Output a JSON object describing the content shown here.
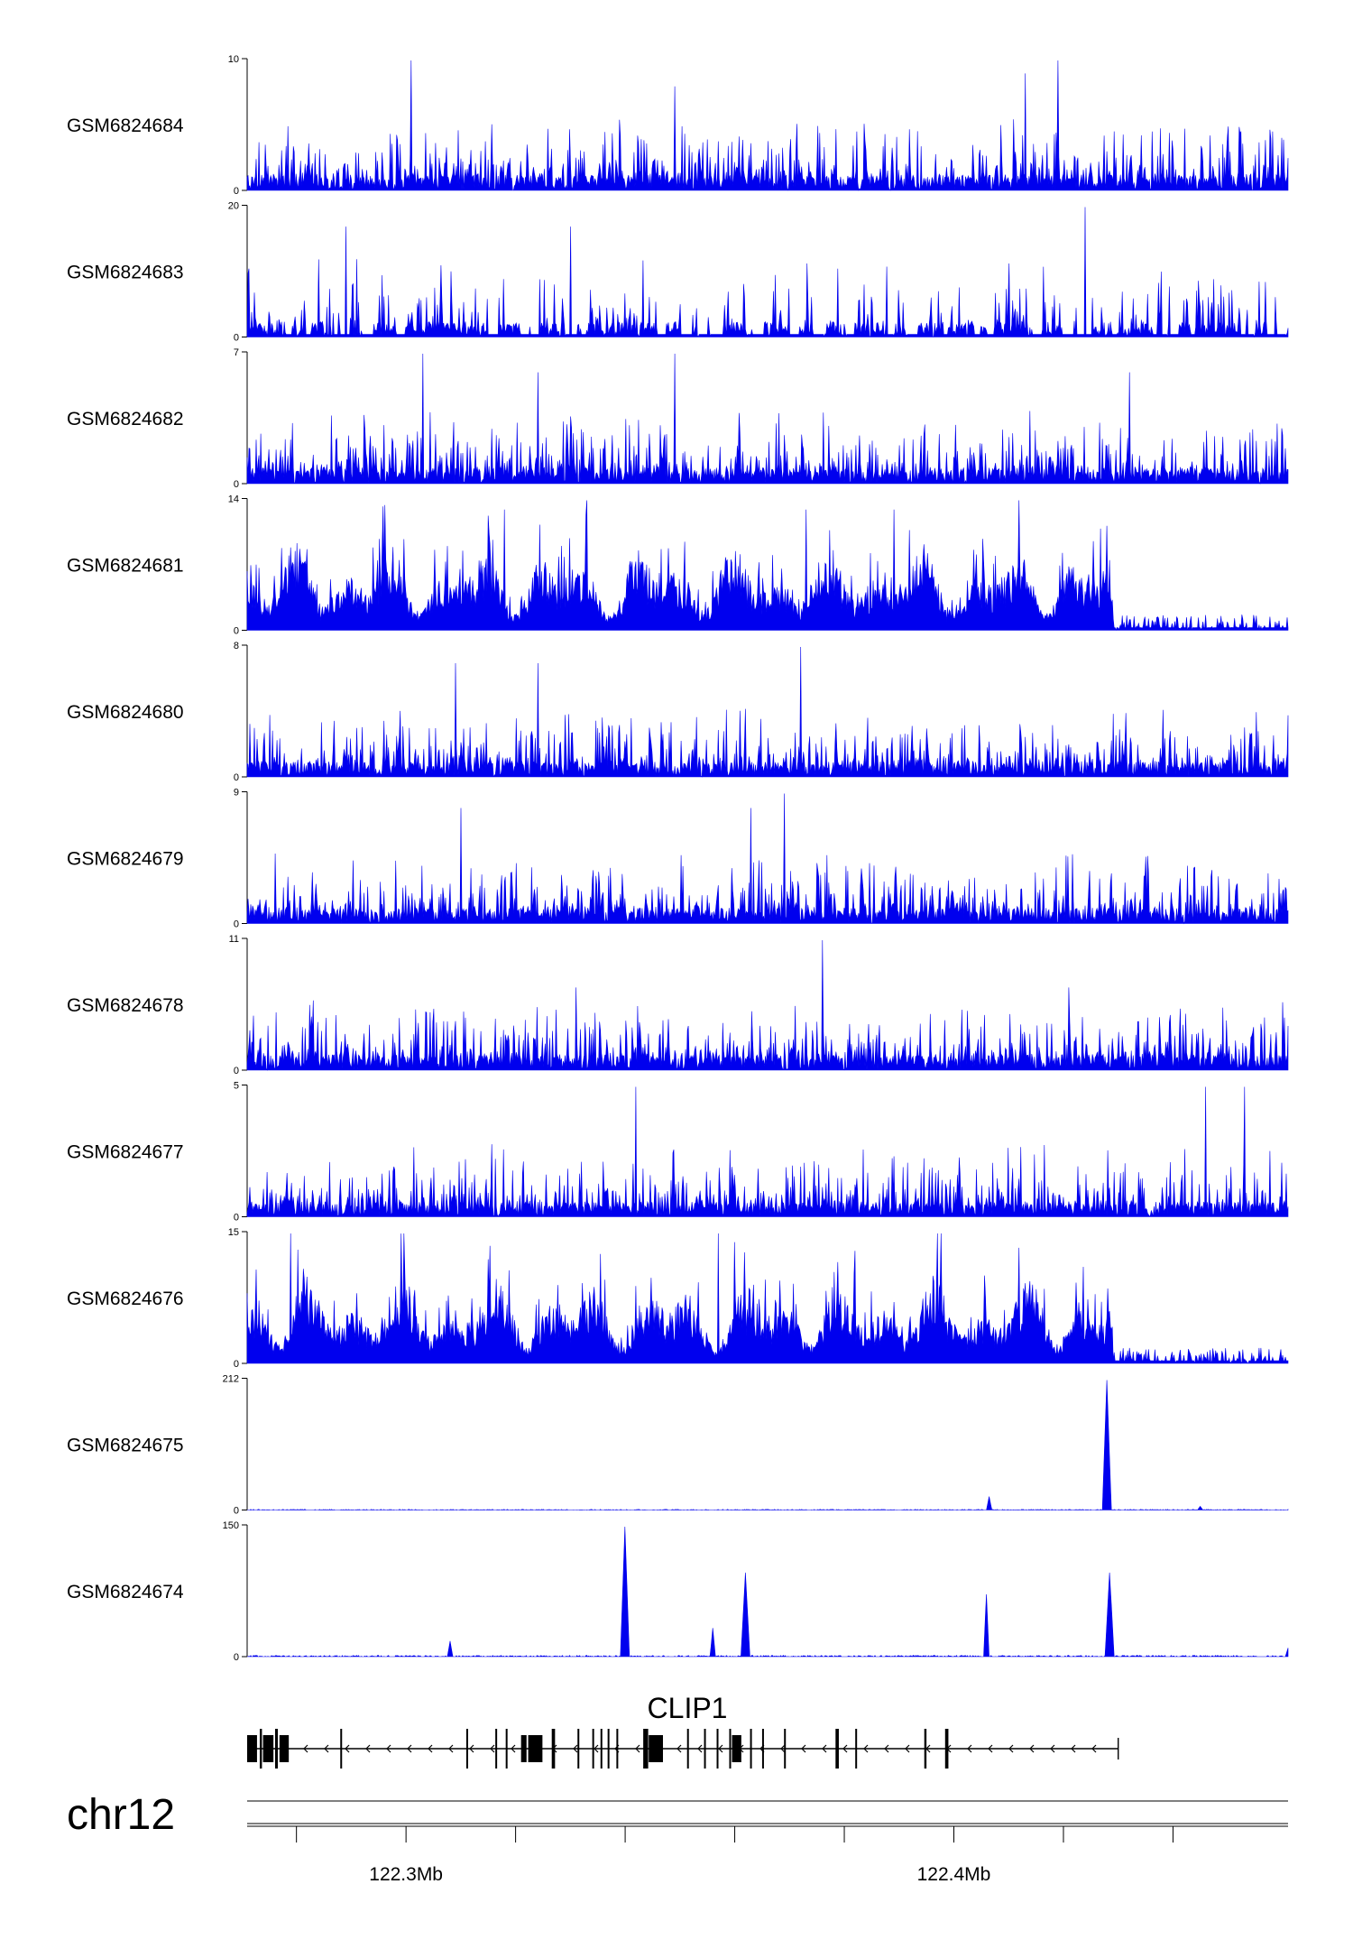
{
  "chart_data": {
    "type": "area",
    "title": "",
    "chromosome": "chr12",
    "genomic_range": [
      122265000,
      122455000
    ],
    "tracks": [
      {
        "name": "GSM6824684",
        "ymax": 10,
        "ymin": 0,
        "profile": "noisy",
        "level": 0.35,
        "peaks": [
          [
            122295000,
            10
          ],
          [
            122413000,
            10
          ],
          [
            122407000,
            9
          ],
          [
            122343000,
            8
          ]
        ]
      },
      {
        "name": "GSM6824683",
        "ymax": 20,
        "ymin": 0,
        "profile": "spiky-gapped",
        "level": 0.15,
        "peaks": [
          [
            122418000,
            20
          ],
          [
            122283000,
            17
          ],
          [
            122324000,
            17
          ]
        ]
      },
      {
        "name": "GSM6824682",
        "ymax": 7,
        "ymin": 0,
        "profile": "noisy",
        "level": 0.35,
        "peaks": [
          [
            122297000,
            7
          ],
          [
            122343000,
            7
          ],
          [
            122318000,
            6
          ],
          [
            122426000,
            6
          ]
        ]
      },
      {
        "name": "GSM6824681",
        "ymax": 14,
        "ymin": 0,
        "profile": "dense-drop",
        "level": 0.5,
        "drop_at": 122423000,
        "peaks": [
          [
            122327000,
            14
          ],
          [
            122312000,
            13
          ],
          [
            122367000,
            13
          ],
          [
            122383000,
            13
          ]
        ]
      },
      {
        "name": "GSM6824680",
        "ymax": 8,
        "ymin": 0,
        "profile": "noisy",
        "level": 0.35,
        "peaks": [
          [
            122366000,
            8
          ],
          [
            122303000,
            7
          ],
          [
            122318000,
            7
          ]
        ]
      },
      {
        "name": "GSM6824679",
        "ymax": 9,
        "ymin": 0,
        "profile": "noisy",
        "level": 0.3,
        "peaks": [
          [
            122363000,
            9
          ],
          [
            122357000,
            8
          ],
          [
            122304000,
            8
          ]
        ]
      },
      {
        "name": "GSM6824678",
        "ymax": 11,
        "ymin": 0,
        "profile": "noisy",
        "level": 0.25,
        "peaks": [
          [
            122370000,
            11
          ],
          [
            122325000,
            7
          ],
          [
            122415000,
            7
          ]
        ]
      },
      {
        "name": "GSM6824677",
        "ymax": 5,
        "ymin": 0,
        "profile": "noisy",
        "level": 0.45,
        "peaks": [
          [
            122336000,
            5
          ],
          [
            122440000,
            5
          ],
          [
            122447000,
            5
          ]
        ]
      },
      {
        "name": "GSM6824676",
        "ymax": 15,
        "ymin": 0,
        "profile": "dense-drop",
        "level": 0.5,
        "drop_at": 122423000,
        "peaks": [
          [
            122273000,
            15
          ],
          [
            122351000,
            15
          ],
          [
            122354000,
            14
          ],
          [
            122376000,
            13
          ]
        ]
      },
      {
        "name": "GSM6824675",
        "ymax": 212,
        "ymin": 0,
        "profile": "flat-peaks",
        "level": 0.005,
        "peaks": [
          [
            122422000,
            212
          ],
          [
            122400500,
            22
          ],
          [
            122439000,
            6
          ]
        ]
      },
      {
        "name": "GSM6824674",
        "ymax": 150,
        "ymin": 0,
        "profile": "flat-peaks",
        "level": 0.01,
        "peaks": [
          [
            122334000,
            150
          ],
          [
            122356000,
            97
          ],
          [
            122350000,
            33
          ],
          [
            122302000,
            18
          ],
          [
            122400000,
            72
          ],
          [
            122422500,
            97
          ],
          [
            122455000,
            10
          ]
        ]
      }
    ],
    "gene": {
      "name": "CLIP1",
      "strand": "-",
      "start": 122265000,
      "end": 122424000,
      "exons": [
        [
          122265000,
          122266800
        ],
        [
          122267300,
          122267700
        ],
        [
          122267900,
          122269800
        ],
        [
          122270100,
          122270600
        ],
        [
          122270900,
          122272600
        ],
        [
          122282000,
          122282100
        ],
        [
          122305000,
          122305100
        ],
        [
          122310300,
          122310500
        ],
        [
          122312200,
          122312400
        ],
        [
          122315000,
          122316000
        ],
        [
          122316300,
          122318900
        ],
        [
          122320600,
          122321200
        ],
        [
          122325300,
          122325500
        ],
        [
          122328000,
          122328200
        ],
        [
          122329500,
          122329700
        ],
        [
          122330800,
          122331000
        ],
        [
          122332400,
          122332600
        ],
        [
          122337300,
          122338200
        ],
        [
          122338300,
          122340900
        ],
        [
          122345300,
          122345500
        ],
        [
          122348400,
          122348600
        ],
        [
          122350700,
          122350900
        ],
        [
          122353000,
          122353200
        ],
        [
          122353500,
          122355200
        ],
        [
          122356800,
          122357000
        ],
        [
          122359000,
          122359200
        ],
        [
          122363000,
          122363200
        ],
        [
          122372400,
          122373000
        ],
        [
          122376000,
          122376200
        ],
        [
          122388600,
          122389000
        ],
        [
          122392400,
          122393000
        ]
      ]
    },
    "genome_axis": {
      "ticks": [
        122274000,
        122294000,
        122314000,
        122334000,
        122354000,
        122374000,
        122394000,
        122414000,
        122434000
      ],
      "labels": [
        {
          "position": 122294000,
          "text": "122.3Mb"
        },
        {
          "position": 122394000,
          "text": "122.4Mb"
        }
      ]
    }
  }
}
